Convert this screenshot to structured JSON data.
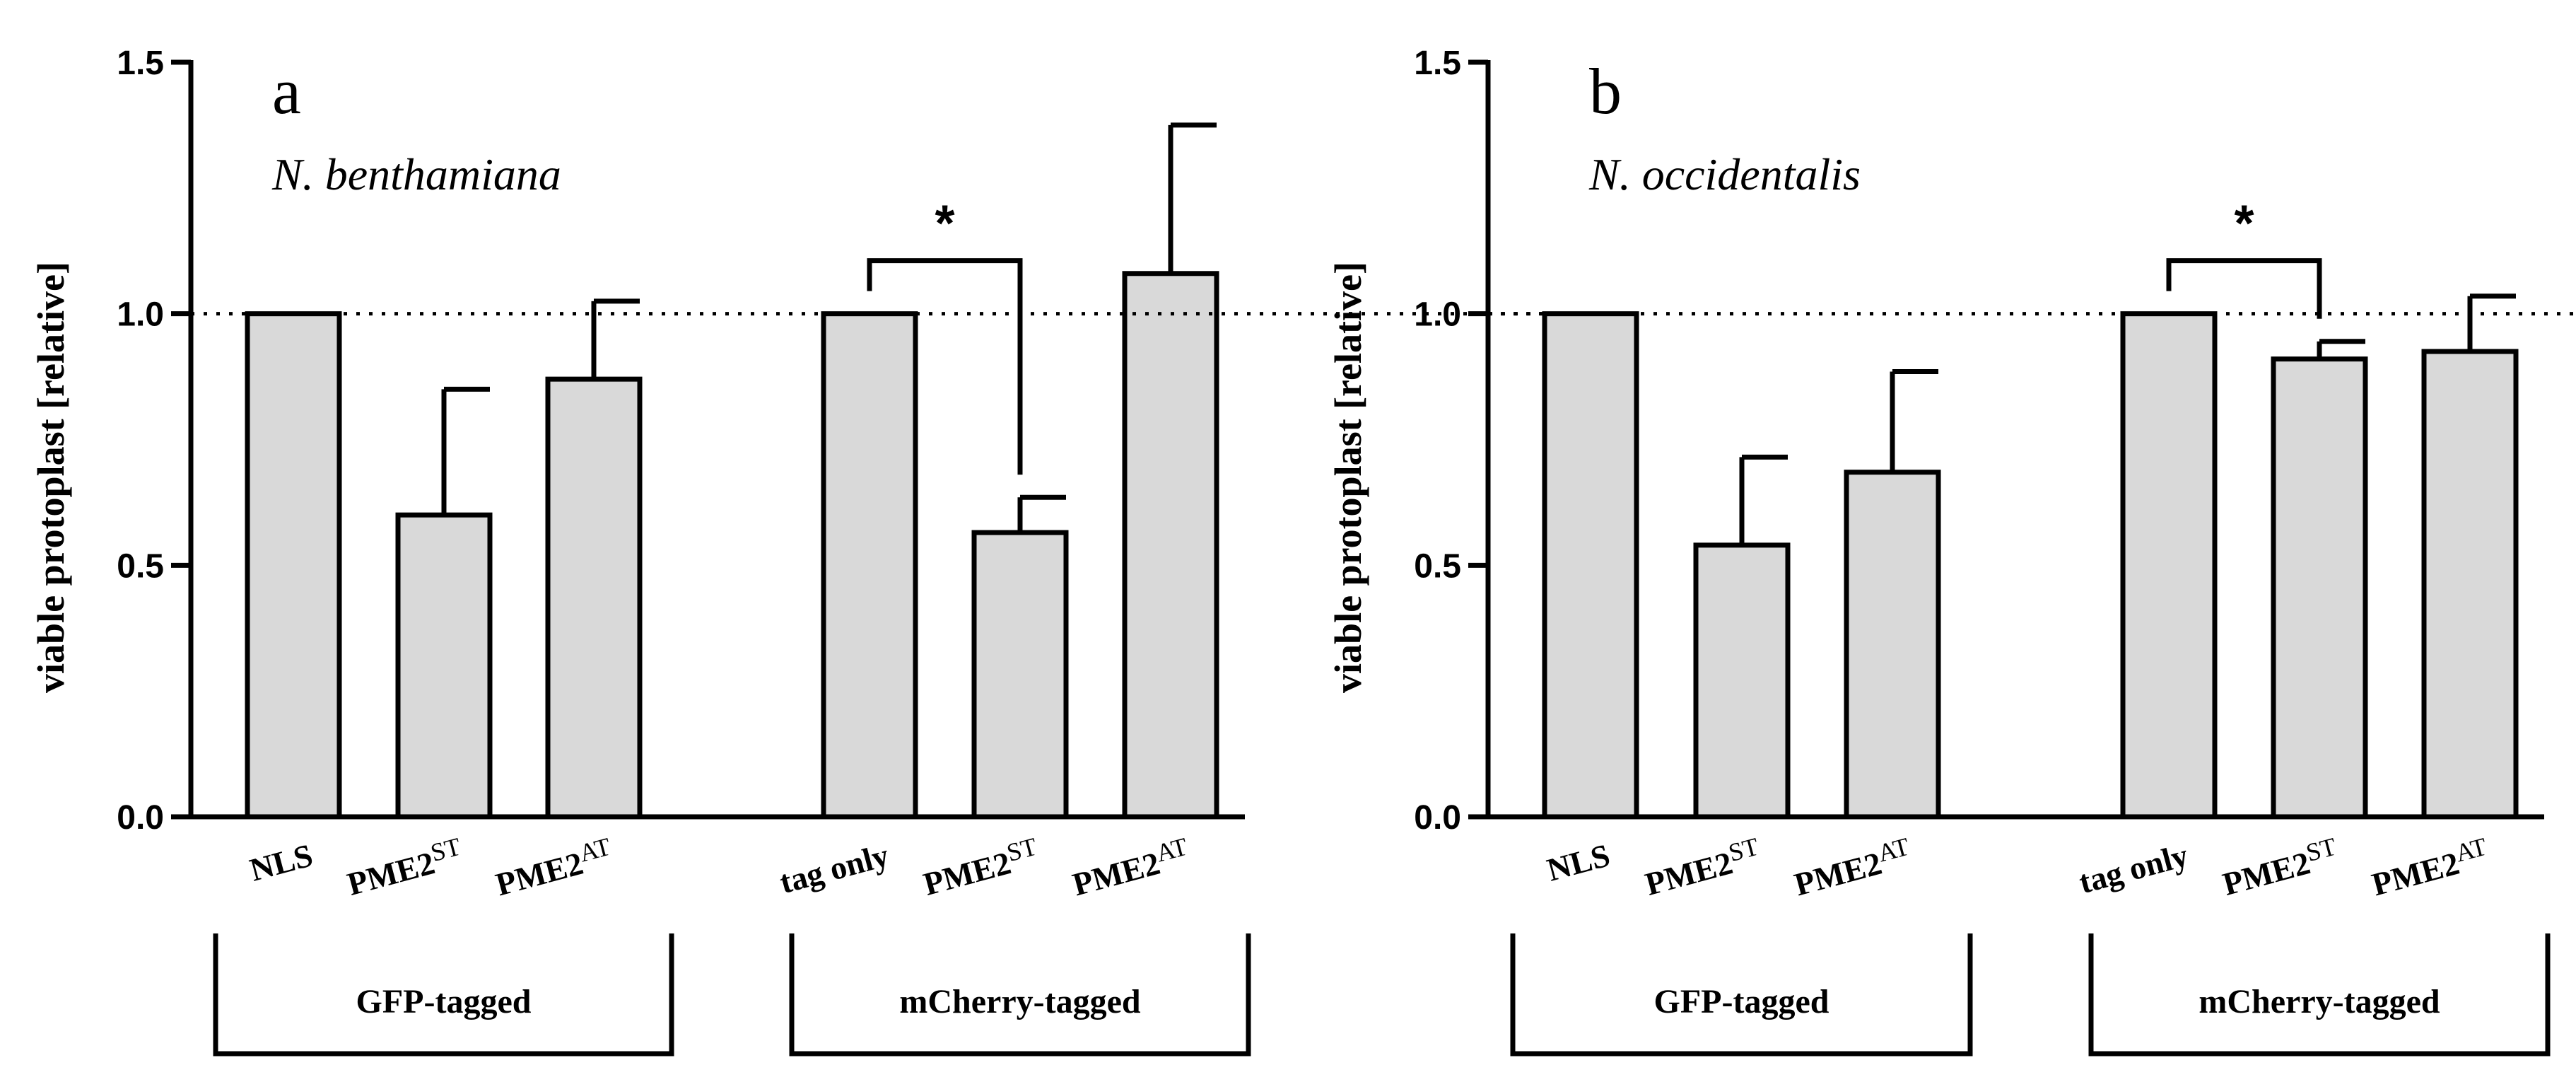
{
  "chart_data": [
    {
      "type": "bar",
      "panel_letter": "a",
      "species": "N. benthamiana",
      "ylabel": "viable protoplast [relative]",
      "ylim": [
        0,
        1.5
      ],
      "yticks": [
        "0.0",
        "0.5",
        "1.0",
        "1.5"
      ],
      "reference_line": 1.0,
      "categories": [
        {
          "main": "NLS",
          "sup": ""
        },
        {
          "main": "PME2",
          "sup": "ST"
        },
        {
          "main": "PME2",
          "sup": "AT"
        },
        {
          "main": "tag only",
          "sup": ""
        },
        {
          "main": "PME2",
          "sup": "ST"
        },
        {
          "main": "PME2",
          "sup": "AT"
        }
      ],
      "values": [
        1.0,
        0.6,
        0.87,
        1.0,
        0.565,
        1.08
      ],
      "errors": [
        0,
        0.25,
        0.155,
        0,
        0.07,
        0.295
      ],
      "groups": [
        {
          "label": "GFP-tagged",
          "start": 0,
          "end": 2
        },
        {
          "label": "mCherry-tagged",
          "start": 3,
          "end": 5
        }
      ],
      "significance": [
        {
          "from": 3,
          "to": 4,
          "label": "*"
        }
      ]
    },
    {
      "type": "bar",
      "panel_letter": "b",
      "species": "N. occidentalis",
      "ylabel": "viable protoplast [relative]",
      "ylim": [
        0,
        1.5
      ],
      "yticks": [
        "0.0",
        "0.5",
        "1.0",
        "1.5"
      ],
      "reference_line": 1.0,
      "categories": [
        {
          "main": "NLS",
          "sup": ""
        },
        {
          "main": "PME2",
          "sup": "ST"
        },
        {
          "main": "PME2",
          "sup": "AT"
        },
        {
          "main": "tag only",
          "sup": ""
        },
        {
          "main": "PME2",
          "sup": "ST"
        },
        {
          "main": "PME2",
          "sup": "AT"
        }
      ],
      "values": [
        1.0,
        0.54,
        0.685,
        1.0,
        0.91,
        0.925
      ],
      "errors": [
        0,
        0.175,
        0.2,
        0,
        0.035,
        0.11
      ],
      "groups": [
        {
          "label": "GFP-tagged",
          "start": 0,
          "end": 2
        },
        {
          "label": "mCherry-tagged",
          "start": 3,
          "end": 5
        }
      ],
      "significance": [
        {
          "from": 3,
          "to": 4,
          "label": "*"
        }
      ]
    }
  ]
}
